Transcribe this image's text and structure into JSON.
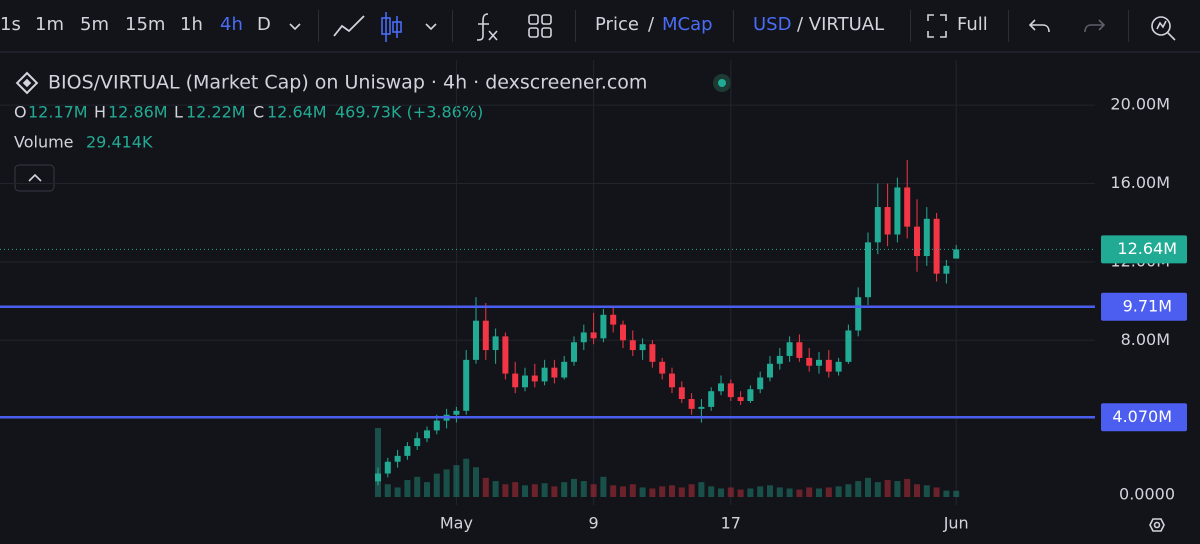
{
  "toolbar": {
    "intervals": [
      {
        "label": "1s",
        "active": false
      },
      {
        "label": "1m",
        "active": false
      },
      {
        "label": "5m",
        "active": false
      },
      {
        "label": "15m",
        "active": false
      },
      {
        "label": "1h",
        "active": false
      },
      {
        "label": "4h",
        "active": true
      },
      {
        "label": "D",
        "active": false
      }
    ],
    "price": "Price",
    "price_sep": "/",
    "mcap": "MCap",
    "usd": "USD",
    "currency_rest": "/ VIRTUAL",
    "full": "Full"
  },
  "chart_data": {
    "type": "candlestick",
    "title": "BIOS/VIRTUAL (Market Cap) on Uniswap · 4h · dexscreener.com",
    "legend": {
      "o_key": "O",
      "open": "12.17M",
      "h_key": "H",
      "high": "12.86M",
      "l_key": "L",
      "low": "12.22M",
      "c_key": "C",
      "close": "12.64M",
      "change": "469.73K (+3.86%)",
      "volume_key": "Volume",
      "volume": "29.414K"
    },
    "categories": [
      null,
      null,
      null,
      null,
      null,
      null,
      null,
      null,
      "May",
      null,
      null,
      null,
      null,
      null,
      null,
      null,
      null,
      null,
      null,
      null,
      null,
      null,
      "9",
      null,
      null,
      null,
      null,
      null,
      null,
      null,
      null,
      null,
      null,
      null,
      null,
      null,
      "17",
      null,
      null,
      null,
      null,
      null,
      null,
      null,
      null,
      null,
      null,
      null,
      null,
      null,
      null,
      null,
      null,
      null,
      null,
      null,
      null,
      null,
      null,
      "Jun"
    ],
    "open": [
      0.8,
      1.2,
      1.8,
      2.1,
      2.6,
      3.0,
      3.4,
      3.9,
      4.2,
      4.4,
      7.0,
      9.0,
      7.5,
      8.2,
      6.3,
      5.6,
      6.2,
      5.9,
      6.6,
      6.1,
      6.9,
      7.9,
      8.4,
      8.1,
      9.3,
      8.8,
      8.0,
      7.5,
      7.8,
      6.9,
      6.3,
      5.6,
      5.0,
      4.5,
      4.6,
      5.4,
      5.8,
      5.1,
      4.9,
      5.5,
      6.1,
      6.8,
      7.2,
      7.9,
      7.1,
      6.7,
      7.0,
      6.4,
      6.9,
      8.5,
      10.2,
      13.0,
      14.8,
      13.4,
      15.8,
      13.8,
      12.3,
      14.2,
      11.4,
      12.17
    ],
    "high": [
      1.5,
      2.0,
      2.4,
      2.8,
      3.3,
      3.6,
      4.2,
      4.5,
      4.6,
      7.5,
      10.2,
      9.9,
      8.6,
      8.4,
      6.9,
      6.6,
      6.8,
      7.0,
      7.0,
      7.2,
      8.2,
      8.8,
      9.4,
      9.6,
      9.7,
      9.0,
      8.5,
      8.1,
      8.0,
      7.1,
      6.6,
      5.9,
      5.3,
      5.0,
      5.6,
      6.2,
      6.0,
      5.4,
      5.7,
      6.4,
      7.2,
      7.6,
      8.2,
      8.3,
      7.6,
      7.4,
      7.5,
      7.1,
      8.8,
      10.7,
      13.5,
      16.0,
      16.0,
      16.3,
      17.2,
      15.2,
      14.8,
      14.5,
      12.1,
      12.86
    ],
    "low": [
      0.6,
      1.0,
      1.5,
      1.9,
      2.4,
      2.8,
      3.2,
      3.5,
      3.8,
      4.2,
      6.8,
      7.0,
      6.8,
      6.0,
      5.3,
      5.4,
      5.6,
      5.7,
      5.8,
      6.0,
      6.7,
      7.5,
      7.8,
      7.9,
      8.4,
      7.6,
      7.2,
      7.0,
      6.6,
      6.0,
      5.3,
      4.8,
      4.2,
      3.8,
      4.4,
      5.2,
      4.9,
      4.7,
      4.8,
      5.3,
      5.9,
      6.5,
      6.9,
      6.9,
      6.4,
      6.3,
      6.1,
      6.2,
      6.8,
      8.2,
      9.8,
      12.4,
      12.8,
      13.0,
      13.2,
      11.5,
      11.8,
      11.0,
      10.9,
      12.22
    ],
    "close": [
      1.2,
      1.8,
      2.1,
      2.6,
      3.0,
      3.4,
      3.9,
      4.2,
      4.4,
      7.0,
      9.0,
      7.5,
      8.2,
      6.3,
      5.6,
      6.2,
      5.9,
      6.6,
      6.1,
      6.9,
      7.9,
      8.4,
      8.1,
      9.3,
      8.8,
      8.0,
      7.5,
      7.8,
      6.9,
      6.3,
      5.6,
      5.0,
      4.5,
      4.6,
      5.4,
      5.8,
      5.1,
      4.9,
      5.5,
      6.1,
      6.8,
      7.2,
      7.9,
      7.1,
      6.7,
      7.0,
      6.4,
      6.9,
      8.5,
      10.2,
      13.0,
      14.8,
      13.4,
      15.8,
      13.8,
      12.3,
      14.2,
      11.4,
      11.8,
      12.64
    ],
    "volume": [
      325,
      60,
      45,
      80,
      95,
      70,
      110,
      130,
      150,
      180,
      140,
      90,
      75,
      60,
      70,
      55,
      60,
      65,
      50,
      70,
      85,
      75,
      60,
      95,
      55,
      50,
      60,
      45,
      40,
      50,
      55,
      45,
      60,
      70,
      50,
      40,
      45,
      35,
      40,
      50,
      55,
      45,
      40,
      35,
      45,
      40,
      45,
      50,
      60,
      75,
      90,
      70,
      80,
      75,
      85,
      60,
      55,
      45,
      30,
      29.414
    ],
    "up_color": "#22ab94",
    "down_color": "#f23645",
    "ylim": [
      0,
      22
    ],
    "yticks": [
      {
        "value": 20,
        "label": "20.00M"
      },
      {
        "value": 16,
        "label": "16.00M"
      },
      {
        "value": 12,
        "label": "12.00M"
      },
      {
        "value": 8,
        "label": "8.00M"
      }
    ],
    "volume_lim": [
      0,
      400
    ],
    "volume_ticks": [
      {
        "value": 0,
        "label": "0.0000"
      }
    ],
    "levels": [
      {
        "value": 9.71,
        "label": "9.71M",
        "color": "#4c5ef0"
      },
      {
        "value": 4.07,
        "label": "4.070M",
        "color": "#4c5ef0"
      }
    ],
    "last_price": {
      "value": 12.64,
      "label": "12.64M",
      "color": "#22ab94"
    },
    "grid": true
  }
}
